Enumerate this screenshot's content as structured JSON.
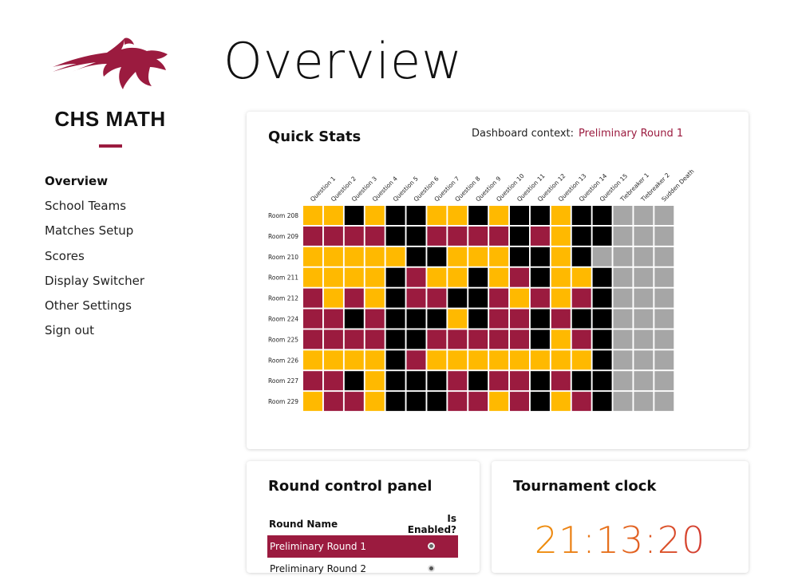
{
  "sidebar": {
    "brand": "CHS MATH",
    "nav": [
      {
        "label": "Overview",
        "active": true
      },
      {
        "label": "School Teams",
        "active": false
      },
      {
        "label": "Matches Setup",
        "active": false
      },
      {
        "label": "Scores",
        "active": false
      },
      {
        "label": "Display Switcher",
        "active": false
      },
      {
        "label": "Other Settings",
        "active": false
      },
      {
        "label": "Sign out",
        "active": false
      }
    ]
  },
  "page_title": "Overview",
  "quick_stats": {
    "title": "Quick Stats",
    "context_label": "Dashboard context:",
    "context_value": "Preliminary Round 1",
    "columns": [
      "Question 1",
      "Question 2",
      "Question 3",
      "Question 4",
      "Question 5",
      "Question 6",
      "Question 7",
      "Question 8",
      "Question 9",
      "Question 10",
      "Question 11",
      "Question 12",
      "Question 13",
      "Question 14",
      "Question 15",
      "Tiebreaker 1",
      "Tiebreaker 2",
      "Sudden Death"
    ],
    "rows": [
      "Room 208",
      "Room 209",
      "Room 210",
      "Room 211",
      "Room 212",
      "Room 224",
      "Room 225",
      "Room 226",
      "Room 227",
      "Room 229"
    ],
    "cells": [
      "YYKYKKYYKYKKYKKGGG",
      "RRRRKKRRRRKRYKKGGG",
      "YYYYYKKYYYKKYKGGGG",
      "YYYYKRYYKYRKYYKGGG",
      "RYRYKRRKKRYRYRKGGG",
      "RRKRKKKYKRRKRKKGGG",
      "RRRRKKRRRRRKYRKGGG",
      "YYYYKRYYYYYYYYKGGG",
      "RRKYKKKRKRRKRKKGGG",
      "YRRYKKKRRYRKYRKGGG"
    ],
    "colors": {
      "Y": "#ffb900",
      "R": "#9b1b3f",
      "K": "#000000",
      "G": "#a6a6a6"
    }
  },
  "round_panel": {
    "title": "Round control panel",
    "col_name": "Round Name",
    "col_enabled": "Is Enabled?",
    "rounds": [
      {
        "name": "Preliminary Round 1",
        "selected": true
      },
      {
        "name": "Preliminary Round 2",
        "selected": false
      }
    ]
  },
  "clock": {
    "title": "Tournament clock",
    "time": "21:13:20"
  },
  "accent": "#9b1b3f"
}
